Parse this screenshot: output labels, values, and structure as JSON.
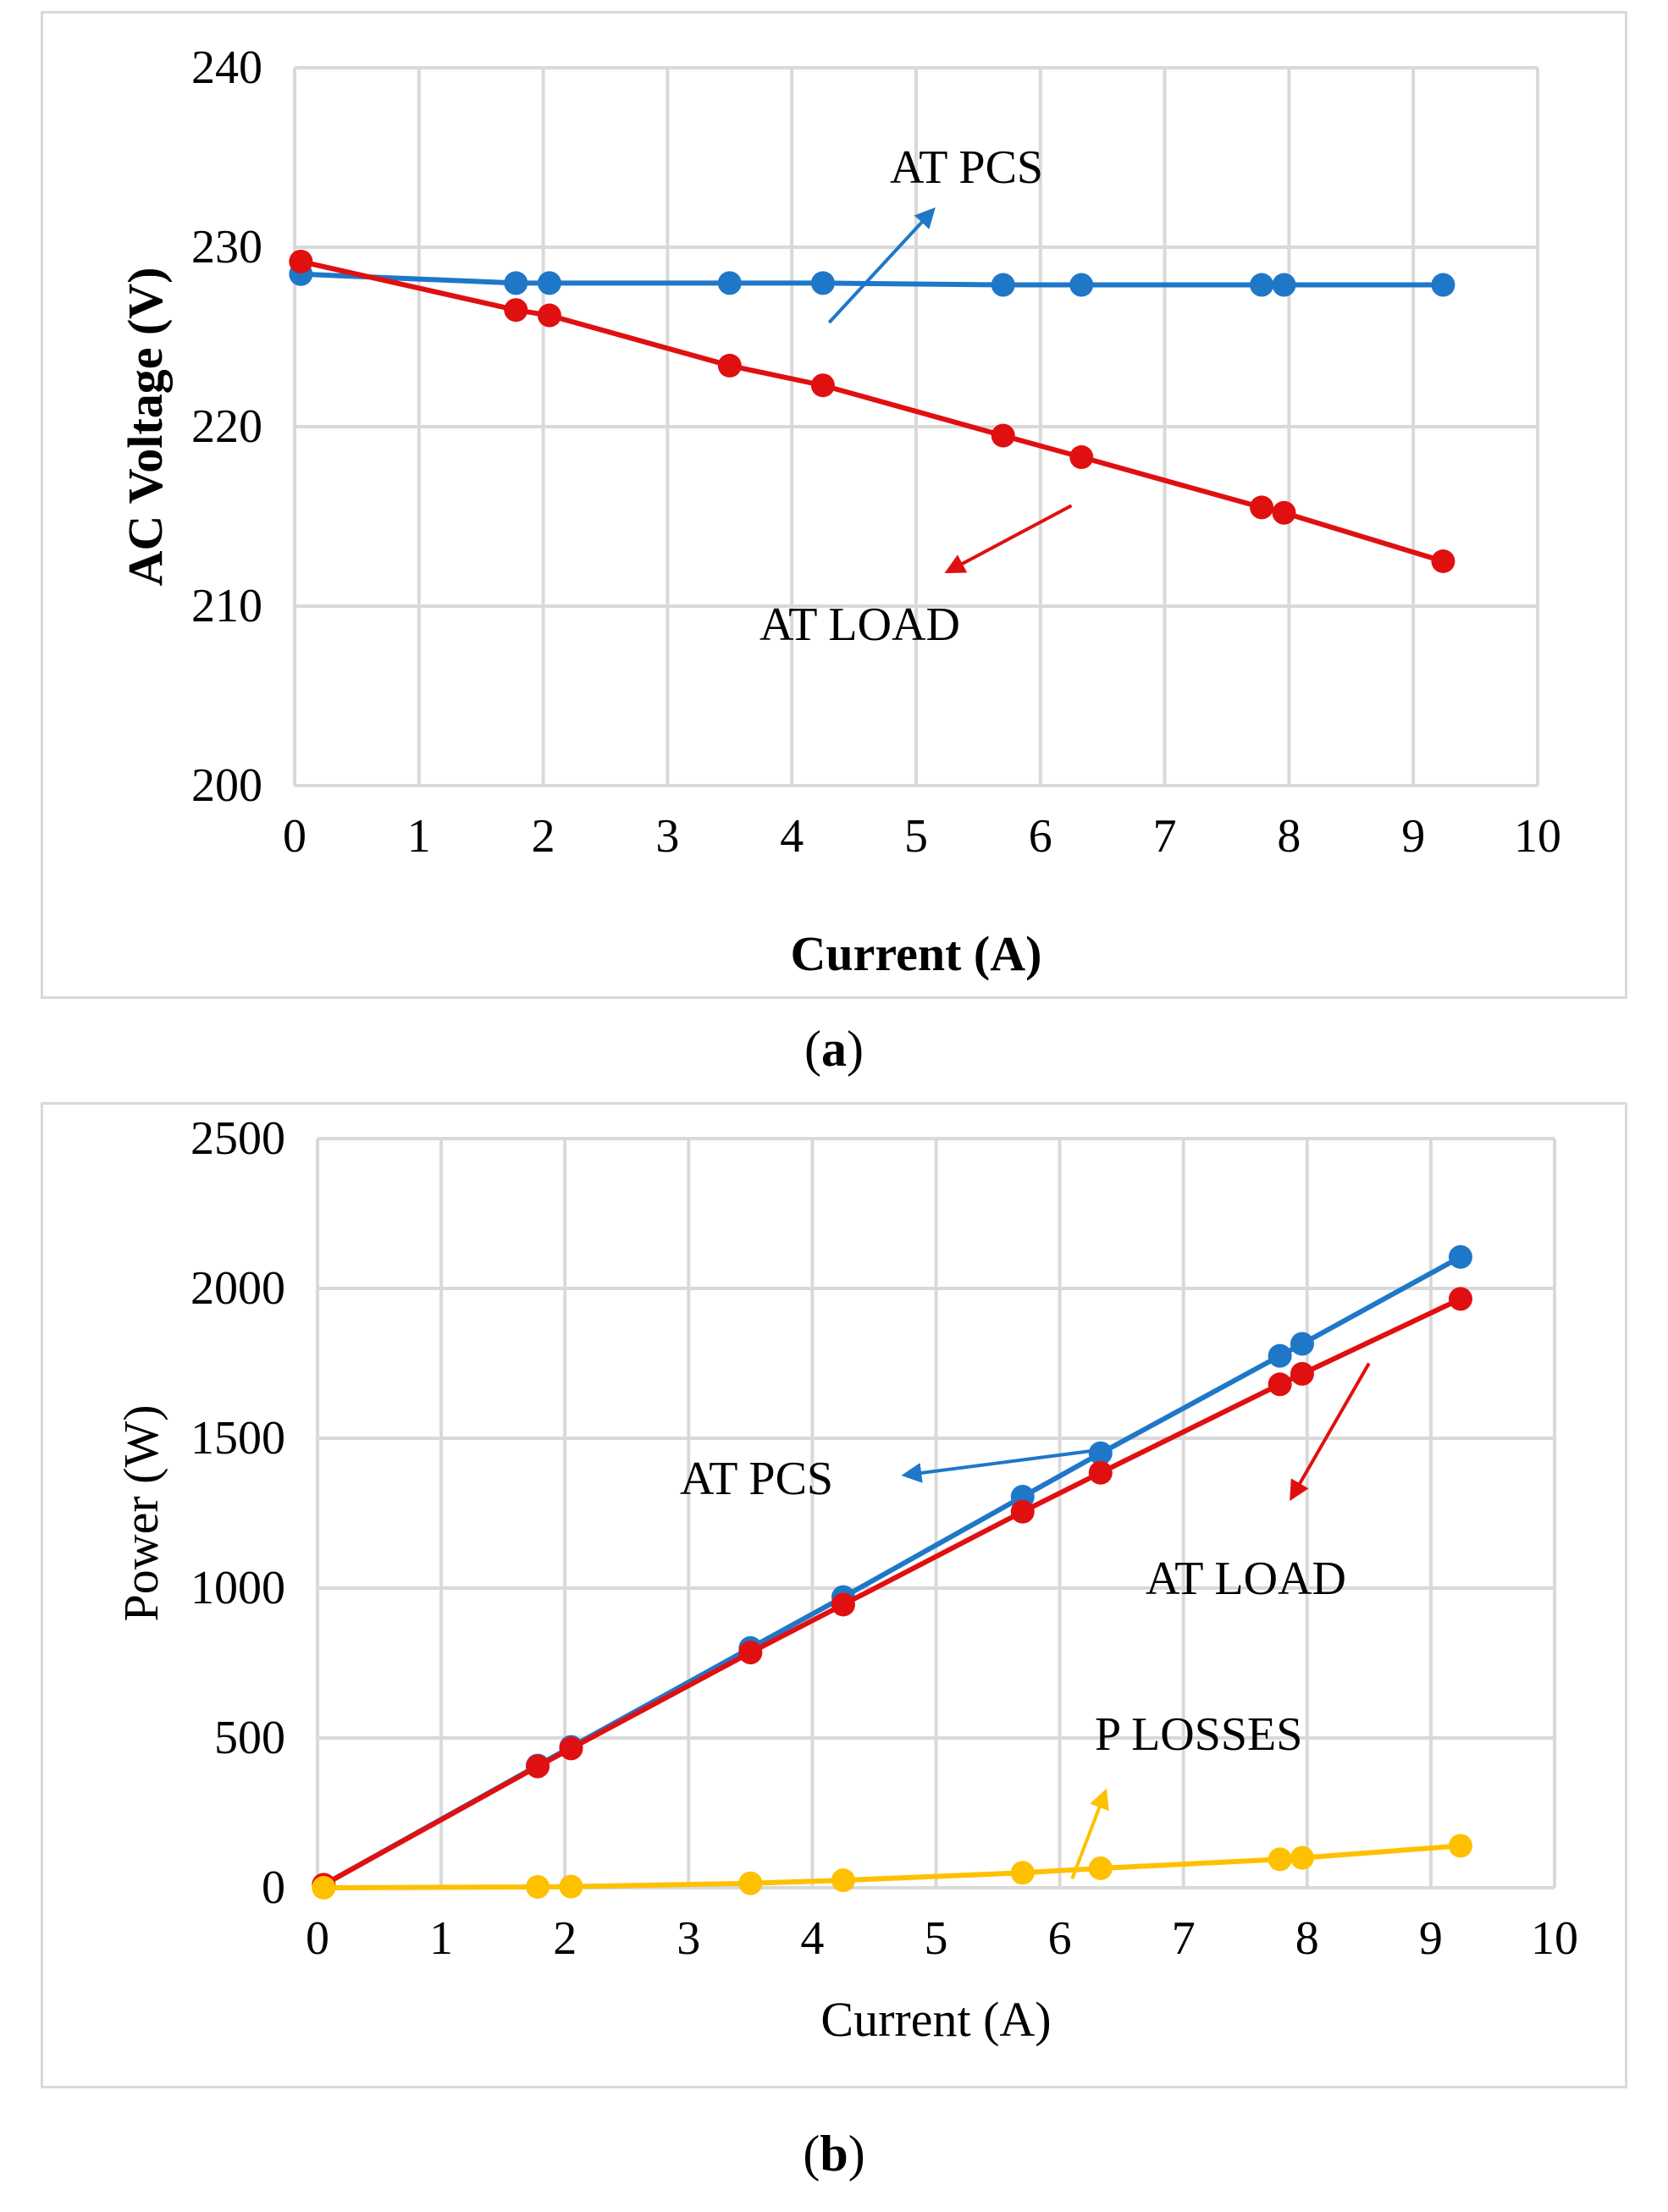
{
  "chart_data": [
    {
      "type": "line",
      "panel": "a",
      "caption_letter": "a",
      "title": "",
      "xlabel": "Current (A)",
      "ylabel": "AC Voltage (V)",
      "xlim": [
        0,
        10
      ],
      "ylim": [
        200,
        240
      ],
      "xticks": [
        0,
        1,
        2,
        3,
        4,
        5,
        6,
        7,
        8,
        9,
        10
      ],
      "yticks": [
        200,
        210,
        220,
        230,
        240
      ],
      "grid": true,
      "series": [
        {
          "name": "AT PCS",
          "color": "#1f77c8",
          "x": [
            0.05,
            1.78,
            2.05,
            3.5,
            4.25,
            5.7,
            6.33,
            7.78,
            7.96,
            9.24
          ],
          "y": [
            228.5,
            228.0,
            228.0,
            228.0,
            228.0,
            227.9,
            227.9,
            227.9,
            227.9,
            227.9
          ]
        },
        {
          "name": "AT LOAD",
          "color": "#e01010",
          "x": [
            0.05,
            1.78,
            2.05,
            3.5,
            4.25,
            5.7,
            6.33,
            7.78,
            7.96,
            9.24
          ],
          "y": [
            229.2,
            226.5,
            226.2,
            223.4,
            222.3,
            219.5,
            218.3,
            215.5,
            215.2,
            212.5
          ]
        }
      ],
      "annotations": [
        {
          "text": "AT PCS",
          "color": "#1f77c8",
          "xy": [
            5.1,
            231.8
          ],
          "arrow_from": [
            4.3,
            225.8
          ]
        },
        {
          "text": "AT LOAD",
          "color": "#e01010",
          "xy": [
            5.3,
            212.1
          ],
          "arrow_from": [
            6.25,
            215.6
          ]
        }
      ]
    },
    {
      "type": "line",
      "panel": "b",
      "caption_letter": "b",
      "title": "",
      "xlabel": "Current (A)",
      "ylabel": "Power (W)",
      "xlim": [
        0,
        10
      ],
      "ylim": [
        0,
        2500
      ],
      "xticks": [
        0,
        1,
        2,
        3,
        4,
        5,
        6,
        7,
        8,
        9,
        10
      ],
      "yticks": [
        0,
        500,
        1000,
        1500,
        2000,
        2500
      ],
      "grid": true,
      "series": [
        {
          "name": "AT PCS",
          "color": "#1f77c8",
          "x": [
            0.05,
            1.78,
            2.05,
            3.5,
            4.25,
            5.7,
            6.33,
            7.78,
            7.96,
            9.24
          ],
          "y": [
            10,
            408,
            470,
            800,
            970,
            1305,
            1450,
            1775,
            1815,
            2105
          ]
        },
        {
          "name": "AT LOAD",
          "color": "#e01010",
          "x": [
            0.05,
            1.78,
            2.05,
            3.5,
            4.25,
            5.7,
            6.33,
            7.78,
            7.96,
            9.24
          ],
          "y": [
            10,
            405,
            465,
            785,
            945,
            1255,
            1385,
            1680,
            1715,
            1965
          ]
        },
        {
          "name": "P LOSSES",
          "color": "#ffc000",
          "x": [
            0.05,
            1.78,
            2.05,
            3.5,
            4.25,
            5.7,
            6.33,
            7.78,
            7.96,
            9.24
          ],
          "y": [
            0,
            3,
            4,
            15,
            25,
            50,
            65,
            95,
            100,
            140
          ]
        }
      ],
      "annotations": [
        {
          "text": "AT PCS",
          "color": "#1f77c8",
          "xy": [
            4.8,
            1380
          ],
          "arrow_from": [
            6.3,
            1460
          ]
        },
        {
          "text": "AT LOAD",
          "color": "#e01010",
          "xy": [
            7.9,
            1320
          ],
          "arrow_from": [
            8.5,
            1750
          ]
        },
        {
          "text": "P LOSSES",
          "color": "#ffc000",
          "xy": [
            6.35,
            300
          ],
          "arrow_from": [
            6.1,
            30
          ]
        }
      ]
    }
  ]
}
